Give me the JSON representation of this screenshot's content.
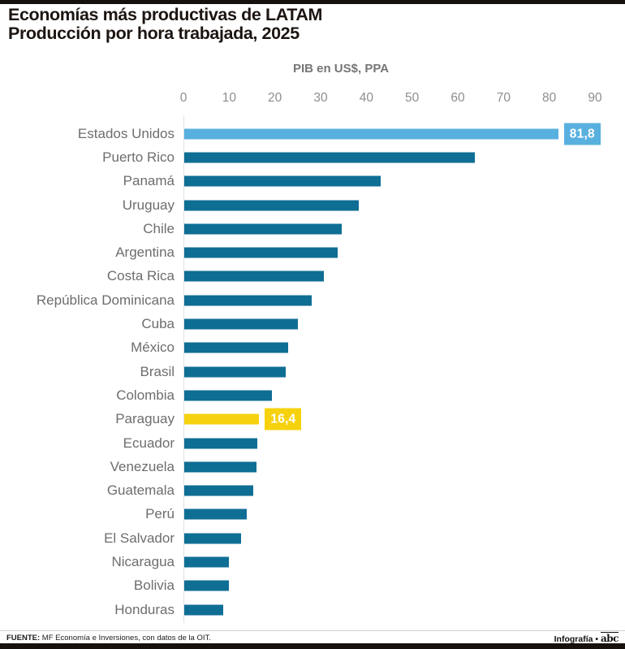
{
  "title": {
    "line1": "Economías más productivas de LATAM",
    "line2": "Producción por hora trabajada, 2025"
  },
  "axis": {
    "label": "PIB en US$, PPA",
    "ticks": [
      0,
      10,
      20,
      30,
      40,
      50,
      60,
      70,
      80,
      90
    ]
  },
  "chart_data": {
    "type": "bar",
    "orientation": "horizontal",
    "title": "Economías más productivas de LATAM",
    "subtitle": "Producción por hora trabajada, 2025",
    "xlabel": "PIB en US$, PPA",
    "xlim": [
      0,
      90
    ],
    "grid": false,
    "legend": false,
    "categories": [
      "Estados Unidos",
      "Puerto Rico",
      "Panamá",
      "Uruguay",
      "Chile",
      "Argentina",
      "Costa Rica",
      "República Dominicana",
      "Cuba",
      "México",
      "Brasil",
      "Colombia",
      "Paraguay",
      "Ecuador",
      "Venezuela",
      "Guatemala",
      "Perú",
      "El Salvador",
      "Nicaragua",
      "Bolivia",
      "Honduras"
    ],
    "values": [
      81.8,
      63.5,
      42.9,
      38.1,
      34.5,
      33.6,
      30.5,
      27.9,
      24.8,
      22.7,
      22.2,
      19.2,
      16.4,
      16.0,
      15.8,
      15.0,
      13.7,
      12.5,
      9.8,
      9.7,
      8.6
    ],
    "highlights": [
      {
        "row": 0,
        "label": "81,8",
        "color": "#58b0df"
      },
      {
        "row": 12,
        "label": "16,4",
        "color": "#f6d20e"
      }
    ],
    "bar_color_default": "#0f6e94"
  },
  "colors": {
    "bar_default": "#0f6e94",
    "bar_highlight_top": "#58b0df",
    "bar_highlight_paraguay": "#f6d20e",
    "label_gray": "#6d6d6d",
    "tick_gray": "#8d8d8d"
  },
  "footer": {
    "source_label": "FUENTE:",
    "source_text": " MF Economía e Inversiones, con datos de la OIT.",
    "credit": "Infografía",
    "bullet": "•",
    "logo": "abc"
  }
}
